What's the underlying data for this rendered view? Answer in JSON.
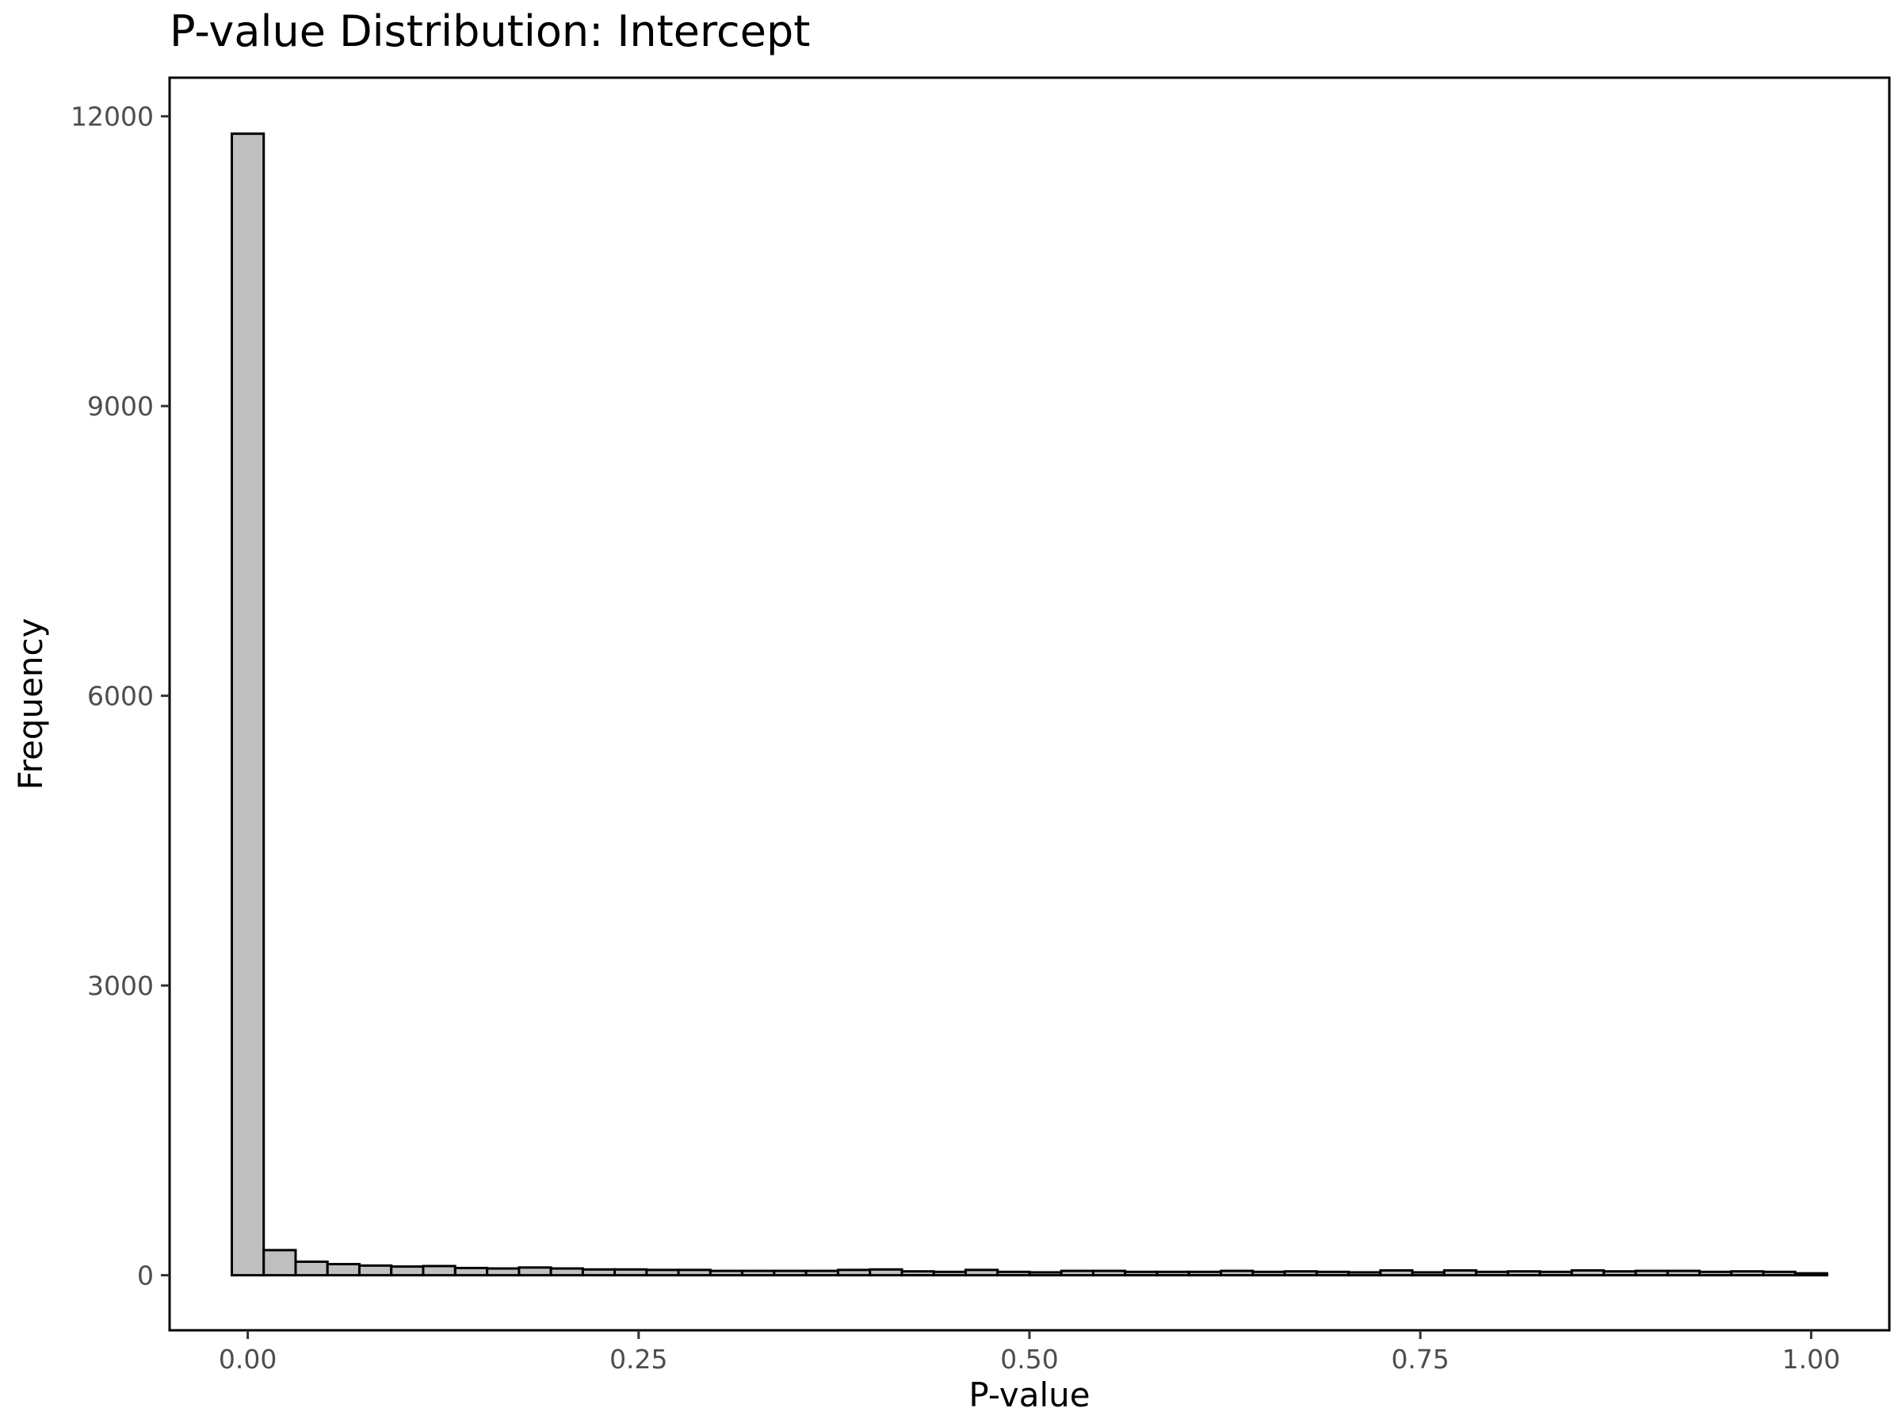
{
  "chart_data": {
    "type": "bar",
    "title": "P-value Distribution: Intercept",
    "xlabel": "P-value",
    "ylabel": "Frequency",
    "xlim": [
      -0.05,
      1.05
    ],
    "ylim": [
      -570,
      12400
    ],
    "x_ticks": [
      0.0,
      0.25,
      0.5,
      0.75,
      1.0
    ],
    "x_tick_labels": [
      "0.00",
      "0.25",
      "0.50",
      "0.75",
      "1.00"
    ],
    "y_ticks": [
      0,
      3000,
      6000,
      9000,
      12000
    ],
    "y_tick_labels": [
      "0",
      "3000",
      "6000",
      "9000",
      "12000"
    ],
    "grid": false,
    "legend": "none",
    "bin_width": 0.0204,
    "bin_centers": [
      0.0,
      0.0204,
      0.0408,
      0.0612,
      0.0816,
      0.102,
      0.1224,
      0.1429,
      0.1633,
      0.1837,
      0.2041,
      0.2245,
      0.2449,
      0.2653,
      0.2857,
      0.3061,
      0.3265,
      0.3469,
      0.3673,
      0.3878,
      0.4082,
      0.4286,
      0.449,
      0.4694,
      0.4898,
      0.5102,
      0.5306,
      0.551,
      0.5714,
      0.5918,
      0.6122,
      0.6327,
      0.6531,
      0.6735,
      0.6939,
      0.7143,
      0.7347,
      0.7551,
      0.7755,
      0.7959,
      0.8163,
      0.8367,
      0.8571,
      0.8776,
      0.898,
      0.9184,
      0.9388,
      0.9592,
      0.9796,
      1.0
    ],
    "values": [
      11820,
      260,
      140,
      115,
      100,
      90,
      95,
      75,
      70,
      80,
      70,
      60,
      60,
      55,
      55,
      45,
      45,
      45,
      45,
      55,
      60,
      40,
      35,
      55,
      35,
      30,
      45,
      45,
      35,
      35,
      35,
      45,
      35,
      40,
      35,
      30,
      50,
      30,
      50,
      35,
      40,
      35,
      50,
      40,
      45,
      45,
      35,
      40,
      35,
      20
    ],
    "colors": {
      "bar_fill": "#bfbfbf",
      "bar_stroke": "#000000",
      "tick_text": "#4d4d4d"
    }
  }
}
